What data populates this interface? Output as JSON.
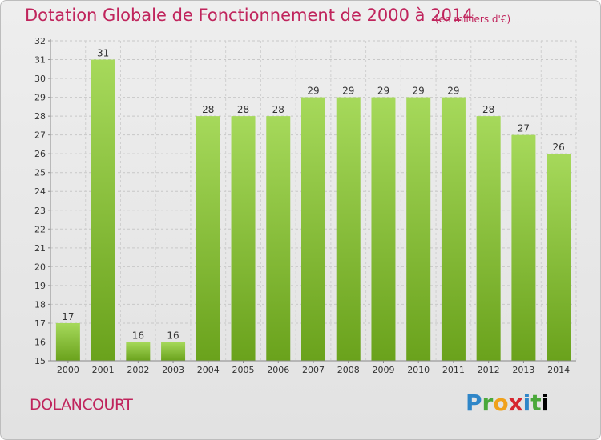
{
  "header": {
    "title": "Dotation Globale de Fonctionnement de 2000 à 2014",
    "subtitle": "(en milliers d'€)"
  },
  "footer": {
    "commune": "DOLANCOURT",
    "logo_letters": [
      "P",
      "r",
      "o",
      "x",
      "i",
      "t",
      "i"
    ]
  },
  "colors": {
    "bar_light": "#a6d95b",
    "bar_dark": "#6aa21c",
    "title": "#c0245c",
    "background": "#e8e8e8"
  },
  "chart_data": {
    "type": "bar",
    "title": "Dotation Globale de Fonctionnement de 2000 à 2014",
    "subtitle": "(en milliers d'€)",
    "xlabel": "",
    "ylabel": "",
    "categories": [
      "2000",
      "2001",
      "2002",
      "2003",
      "2004",
      "2005",
      "2006",
      "2007",
      "2008",
      "2009",
      "2010",
      "2011",
      "2012",
      "2013",
      "2014"
    ],
    "values": [
      17,
      31,
      16,
      16,
      28,
      28,
      28,
      29,
      29,
      29,
      29,
      29,
      28,
      27,
      26
    ],
    "ylim": [
      15,
      32
    ],
    "yticks": [
      15,
      16,
      17,
      18,
      19,
      20,
      21,
      22,
      23,
      24,
      25,
      26,
      27,
      28,
      29,
      30,
      31,
      32
    ],
    "grid": true,
    "legend": "none"
  }
}
